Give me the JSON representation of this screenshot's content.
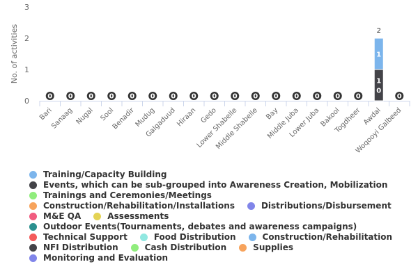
{
  "chart_data": {
    "type": "bar",
    "stacked": true,
    "title": "",
    "xlabel": "",
    "ylabel": "No. of activities",
    "ylim": [
      0,
      3
    ],
    "yticks": [
      0,
      1,
      2,
      3
    ],
    "grid": false,
    "legend_position": "bottom",
    "categories": [
      "Bari",
      "Sanaag",
      "Nugal",
      "Sool",
      "Benadir",
      "Mudug",
      "Galgaduud",
      "Hiraan",
      "Gedo",
      "Lower Shabelle",
      "Middle Shabelle",
      "Bay",
      "Middle Juba",
      "Lower Juba",
      "Bakool",
      "Togdheer",
      "Awdal",
      "Woqooyi Galbeed"
    ],
    "totals": [
      0,
      0,
      0,
      0,
      0,
      0,
      0,
      0,
      0,
      0,
      0,
      0,
      0,
      0,
      0,
      0,
      2,
      0
    ],
    "series": [
      {
        "name": "Training/Capacity Building",
        "color": "#7cb5ec",
        "values": [
          0,
          0,
          0,
          0,
          0,
          0,
          0,
          0,
          0,
          0,
          0,
          0,
          0,
          0,
          0,
          0,
          1,
          0
        ]
      },
      {
        "name": "Events, which can be sub-grouped into Awareness Creation, Mobilization",
        "color": "#434348",
        "values": [
          0,
          0,
          0,
          0,
          0,
          0,
          0,
          0,
          0,
          0,
          0,
          0,
          0,
          0,
          0,
          0,
          1,
          0
        ]
      },
      {
        "name": "Trainings and Ceremonies/Meetings",
        "color": "#90ed7d",
        "values": [
          0,
          0,
          0,
          0,
          0,
          0,
          0,
          0,
          0,
          0,
          0,
          0,
          0,
          0,
          0,
          0,
          0,
          0
        ]
      },
      {
        "name": "Construction/Rehabilitation/Installations",
        "color": "#f7a35c",
        "values": [
          0,
          0,
          0,
          0,
          0,
          0,
          0,
          0,
          0,
          0,
          0,
          0,
          0,
          0,
          0,
          0,
          0,
          0
        ]
      },
      {
        "name": "Distributions/Disbursement",
        "color": "#8085e9",
        "values": [
          0,
          0,
          0,
          0,
          0,
          0,
          0,
          0,
          0,
          0,
          0,
          0,
          0,
          0,
          0,
          0,
          0,
          0
        ]
      },
      {
        "name": "M&E QA",
        "color": "#f15c80",
        "values": [
          0,
          0,
          0,
          0,
          0,
          0,
          0,
          0,
          0,
          0,
          0,
          0,
          0,
          0,
          0,
          0,
          0,
          0
        ]
      },
      {
        "name": "Assessments",
        "color": "#e4d354",
        "values": [
          0,
          0,
          0,
          0,
          0,
          0,
          0,
          0,
          0,
          0,
          0,
          0,
          0,
          0,
          0,
          0,
          0,
          0
        ]
      },
      {
        "name": "Outdoor Events(Tournaments, debates and awareness campaigns)",
        "color": "#2b908f",
        "values": [
          0,
          0,
          0,
          0,
          0,
          0,
          0,
          0,
          0,
          0,
          0,
          0,
          0,
          0,
          0,
          0,
          0,
          0
        ]
      },
      {
        "name": "Technical Support",
        "color": "#f45b5b",
        "values": [
          0,
          0,
          0,
          0,
          0,
          0,
          0,
          0,
          0,
          0,
          0,
          0,
          0,
          0,
          0,
          0,
          0,
          0
        ]
      },
      {
        "name": "Food Distribution",
        "color": "#91e8e1",
        "values": [
          0,
          0,
          0,
          0,
          0,
          0,
          0,
          0,
          0,
          0,
          0,
          0,
          0,
          0,
          0,
          0,
          0,
          0
        ]
      },
      {
        "name": "Construction/Rehabilitation",
        "color": "#7cb5ec",
        "values": [
          0,
          0,
          0,
          0,
          0,
          0,
          0,
          0,
          0,
          0,
          0,
          0,
          0,
          0,
          0,
          0,
          0,
          0
        ]
      },
      {
        "name": "NFI Distribution",
        "color": "#434348",
        "values": [
          0,
          0,
          0,
          0,
          0,
          0,
          0,
          0,
          0,
          0,
          0,
          0,
          0,
          0,
          0,
          0,
          0,
          0
        ]
      },
      {
        "name": "Cash Distribution",
        "color": "#90ed7d",
        "values": [
          0,
          0,
          0,
          0,
          0,
          0,
          0,
          0,
          0,
          0,
          0,
          0,
          0,
          0,
          0,
          0,
          0,
          0
        ]
      },
      {
        "name": "Supplies",
        "color": "#f7a35c",
        "values": [
          0,
          0,
          0,
          0,
          0,
          0,
          0,
          0,
          0,
          0,
          0,
          0,
          0,
          0,
          0,
          0,
          0,
          0
        ]
      },
      {
        "name": "Monitoring and Evaluation",
        "color": "#8085e9",
        "values": [
          0,
          0,
          0,
          0,
          0,
          0,
          0,
          0,
          0,
          0,
          0,
          0,
          0,
          0,
          0,
          0,
          0,
          0
        ]
      }
    ],
    "segment_labels": [
      {
        "category": "Awdal",
        "series": "Training/Capacity Building",
        "text": "1"
      },
      {
        "category": "Awdal",
        "series": "Events, which can be sub-grouped into Awareness Creation, Mobilization",
        "text": "1\n0"
      }
    ]
  }
}
